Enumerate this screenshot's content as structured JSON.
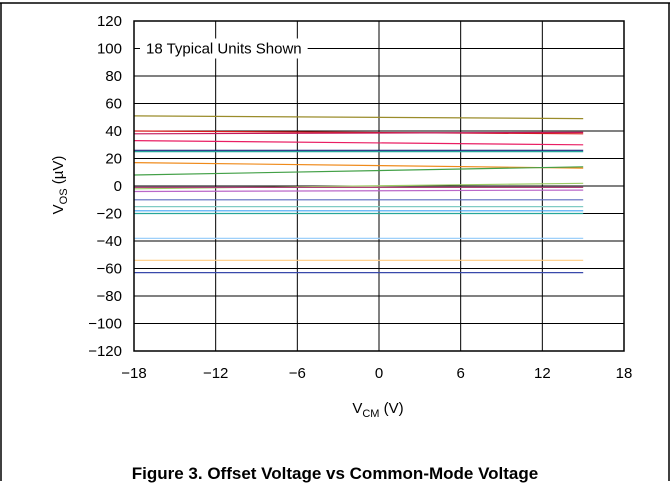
{
  "chart_data": {
    "type": "line",
    "title": "Figure 3. Offset Voltage vs Common-Mode Voltage",
    "annotation": "18 Typical Units Shown",
    "xlabel": {
      "main": "V",
      "sub": "CM",
      "unit": " (V)"
    },
    "ylabel": {
      "main": "V",
      "sub": "OS",
      "unit": " (µV)"
    },
    "xlim": [
      -18,
      18
    ],
    "ylim": [
      -120,
      120
    ],
    "xticks": [
      -18,
      -12,
      -6,
      0,
      6,
      12,
      18
    ],
    "xtick_labels": [
      "−18",
      "−12",
      "−6",
      "0",
      "6",
      "12",
      "18"
    ],
    "yticks": [
      120,
      100,
      80,
      60,
      40,
      20,
      0,
      -20,
      -40,
      -60,
      -80,
      -100,
      -120
    ],
    "ytick_labels": [
      "120",
      "100",
      "80",
      "60",
      "40",
      "20",
      "0",
      "−20",
      "−40",
      "−60",
      "−80",
      "−100",
      "−120"
    ],
    "grid": true,
    "series": [
      {
        "color": "#9a8c2a",
        "x": [
          -18,
          15
        ],
        "y": [
          51,
          49
        ]
      },
      {
        "color": "#d81b1b",
        "x": [
          -18,
          15
        ],
        "y": [
          40,
          38
        ]
      },
      {
        "color": "#c2185b",
        "x": [
          -18,
          15
        ],
        "y": [
          38,
          39
        ]
      },
      {
        "color": "#e91e63",
        "x": [
          -18,
          15
        ],
        "y": [
          33,
          30
        ]
      },
      {
        "color": "#1a237e",
        "x": [
          -18,
          15
        ],
        "y": [
          26,
          26
        ]
      },
      {
        "color": "#26a69a",
        "x": [
          -18,
          15
        ],
        "y": [
          25,
          25
        ]
      },
      {
        "color": "#ef8a1a",
        "x": [
          -18,
          15
        ],
        "y": [
          17,
          13
        ]
      },
      {
        "color": "#43a047",
        "x": [
          -18,
          15
        ],
        "y": [
          8,
          14
        ]
      },
      {
        "color": "#9ccc65",
        "x": [
          -18,
          15
        ],
        "y": [
          -2,
          2
        ]
      },
      {
        "color": "#b0417a",
        "x": [
          -18,
          15
        ],
        "y": [
          -1,
          -1
        ]
      },
      {
        "color": "#5c6bc0",
        "x": [
          -18,
          15
        ],
        "y": [
          -10,
          -10
        ]
      },
      {
        "color": "#80cbc4",
        "x": [
          -18,
          15
        ],
        "y": [
          -15,
          -15
        ]
      },
      {
        "color": "#42a5f5",
        "x": [
          -18,
          15
        ],
        "y": [
          -18,
          -18
        ]
      },
      {
        "color": "#26a69a",
        "x": [
          -18,
          15
        ],
        "y": [
          -20,
          -20
        ]
      },
      {
        "color": "#90caf9",
        "x": [
          -18,
          15
        ],
        "y": [
          -38,
          -38
        ]
      },
      {
        "color": "#ffcc80",
        "x": [
          -18,
          15
        ],
        "y": [
          -54,
          -54
        ]
      },
      {
        "color": "#3949ab",
        "x": [
          -18,
          15
        ],
        "y": [
          -63,
          -63
        ]
      },
      {
        "color": "#ba68c8",
        "x": [
          -18,
          15
        ],
        "y": [
          -4,
          -3
        ]
      }
    ]
  }
}
